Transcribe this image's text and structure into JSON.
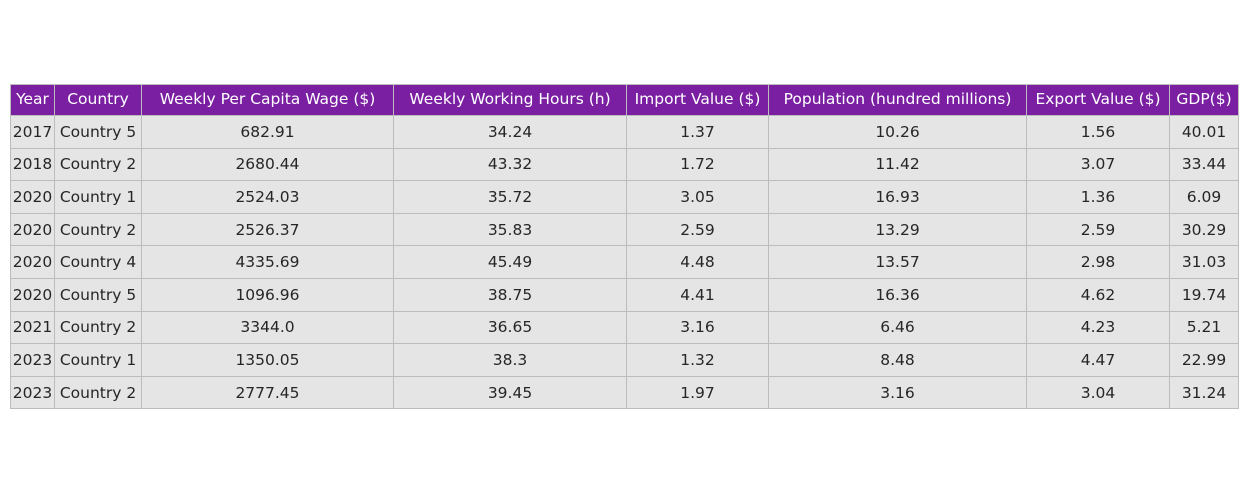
{
  "colors": {
    "header_bg": "#7b1fa2",
    "header_text": "#ffffff",
    "cell_bg": "#e5e5e5",
    "cell_text": "#262626",
    "border": "#bcbcbc"
  },
  "chart_data": {
    "type": "table",
    "columns": [
      "Year",
      "Country",
      "Weekly Per Capita Wage ($)",
      "Weekly Working Hours (h)",
      "Import Value ($)",
      "Population (hundred millions)",
      "Export Value ($)",
      "GDP($)"
    ],
    "rows": [
      [
        "2017",
        "Country 5",
        "682.91",
        "34.24",
        "1.37",
        "10.26",
        "1.56",
        "40.01"
      ],
      [
        "2018",
        "Country 2",
        "2680.44",
        "43.32",
        "1.72",
        "11.42",
        "3.07",
        "33.44"
      ],
      [
        "2020",
        "Country 1",
        "2524.03",
        "35.72",
        "3.05",
        "16.93",
        "1.36",
        "6.09"
      ],
      [
        "2020",
        "Country 2",
        "2526.37",
        "35.83",
        "2.59",
        "13.29",
        "2.59",
        "30.29"
      ],
      [
        "2020",
        "Country 4",
        "4335.69",
        "45.49",
        "4.48",
        "13.57",
        "2.98",
        "31.03"
      ],
      [
        "2020",
        "Country 5",
        "1096.96",
        "38.75",
        "4.41",
        "16.36",
        "4.62",
        "19.74"
      ],
      [
        "2021",
        "Country 2",
        "3344.0",
        "36.65",
        "3.16",
        "6.46",
        "4.23",
        "5.21"
      ],
      [
        "2023",
        "Country 1",
        "1350.05",
        "38.3",
        "1.32",
        "8.48",
        "4.47",
        "22.99"
      ],
      [
        "2023",
        "Country 2",
        "2777.45",
        "39.45",
        "1.97",
        "3.16",
        "3.04",
        "31.24"
      ]
    ]
  }
}
